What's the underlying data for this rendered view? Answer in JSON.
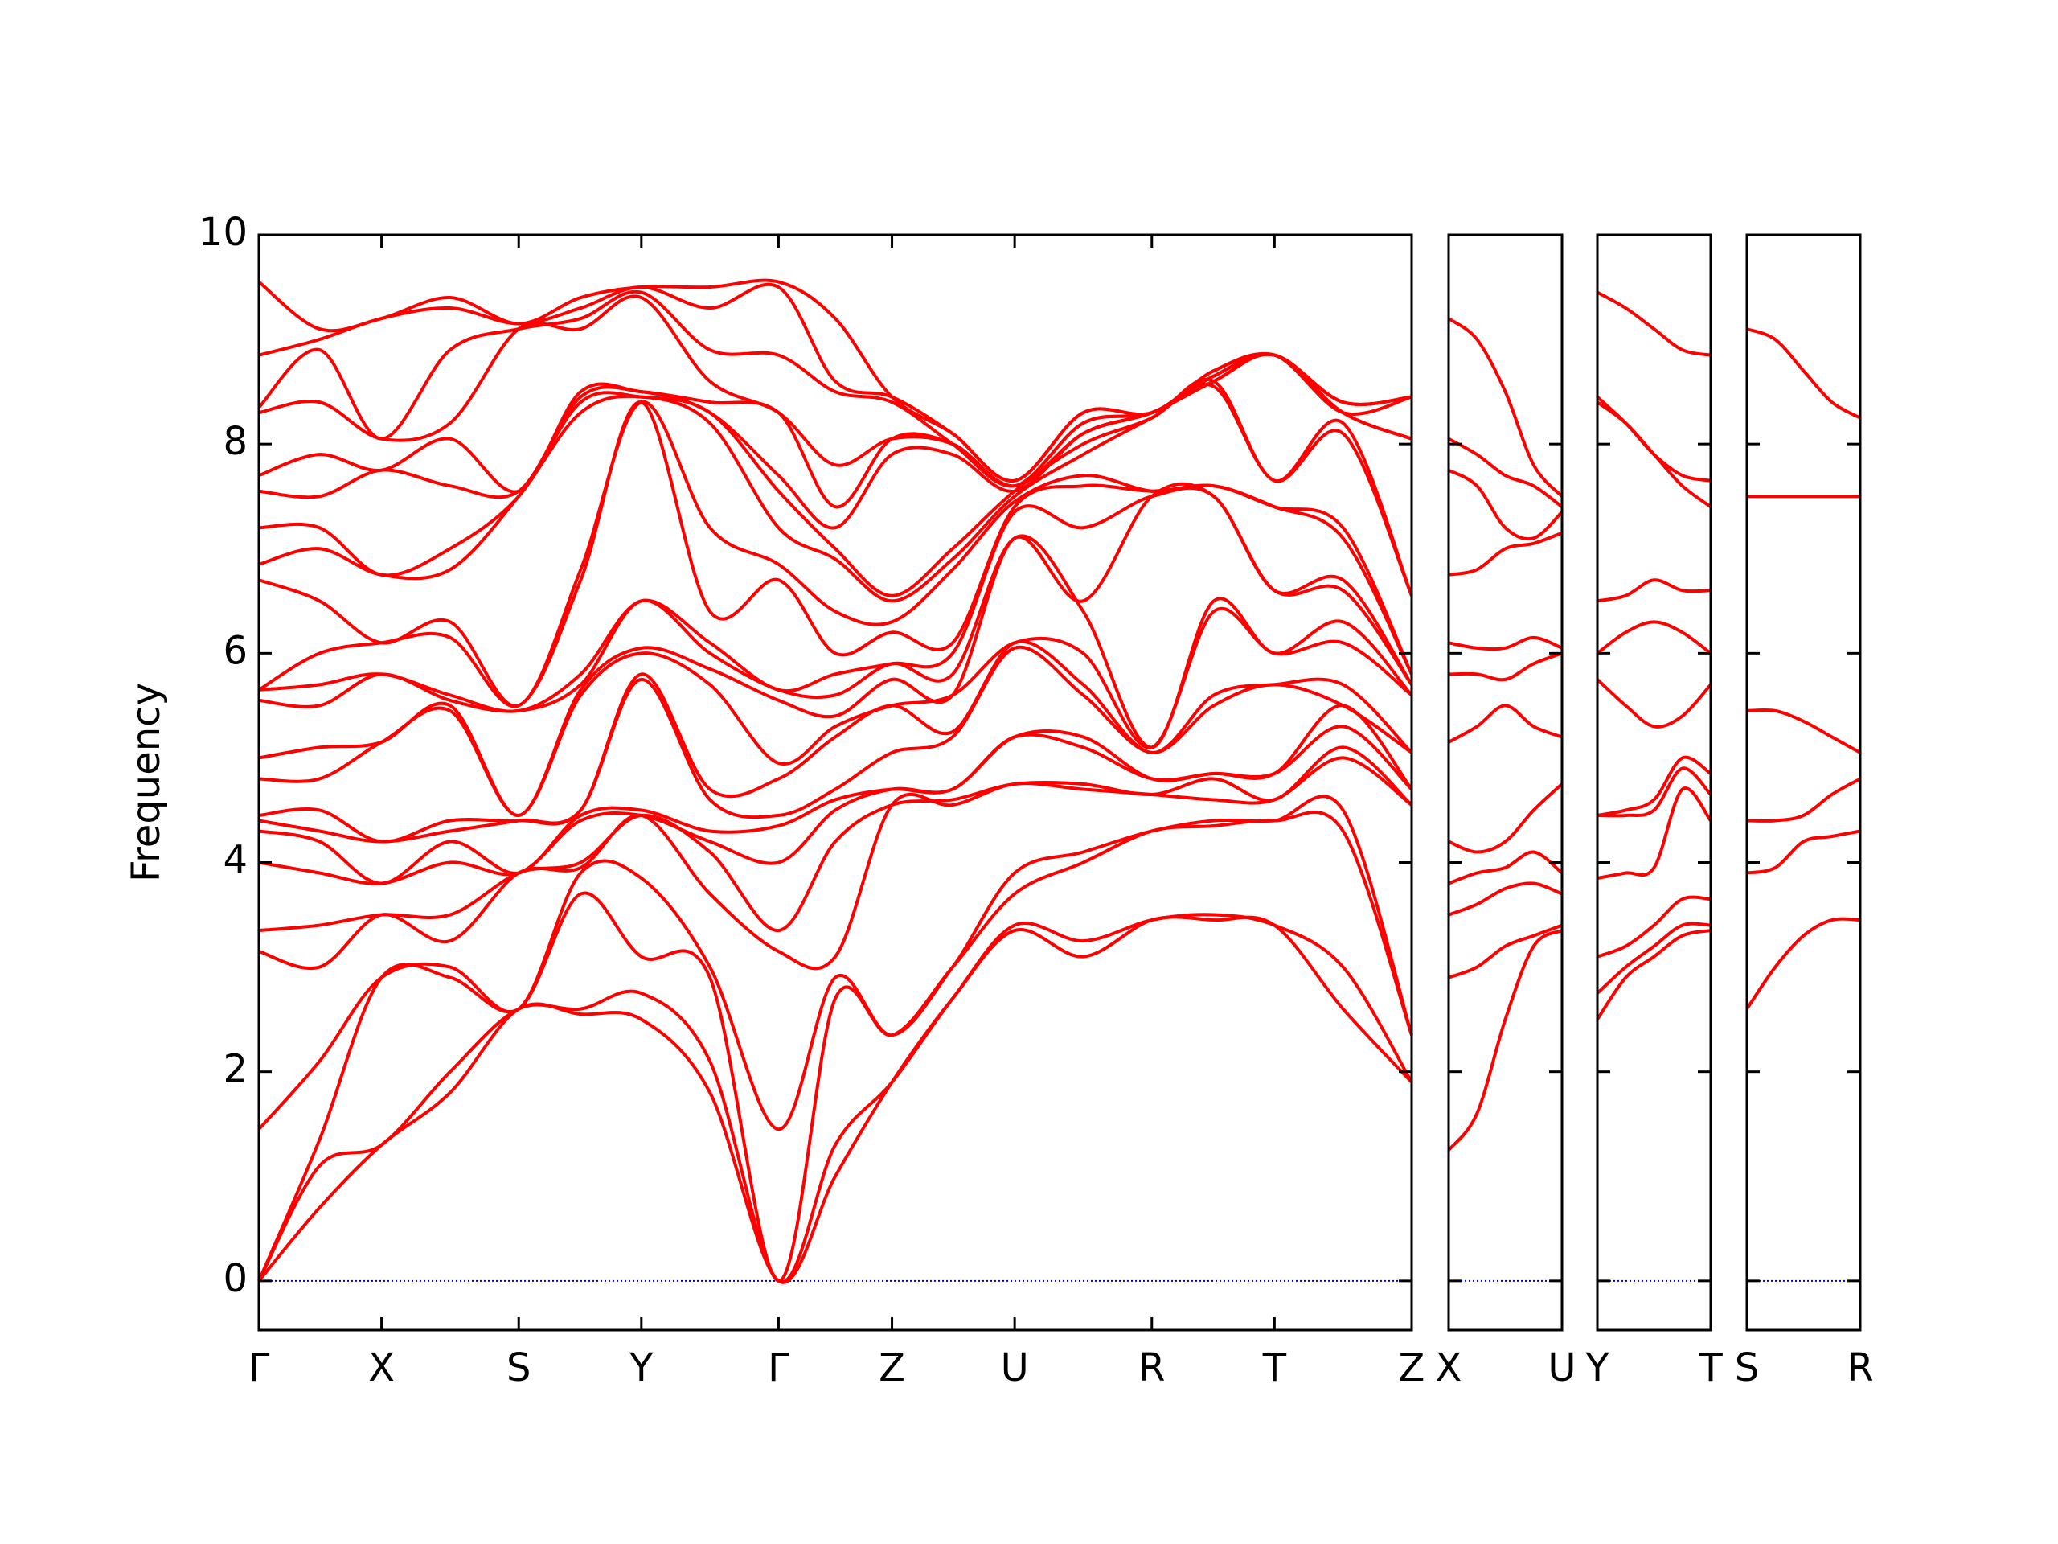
{
  "chart_data": {
    "type": "band-structure",
    "ylabel": "Frequency",
    "ylim": [
      -0.47,
      10
    ],
    "yticks": [
      0,
      2,
      4,
      6,
      8,
      10
    ],
    "color": "#ff0000",
    "zero_line": {
      "value": 0,
      "color": "#0000cc"
    },
    "panels": [
      {
        "xlim": [
          0,
          8.74
        ],
        "xticks": [
          {
            "value": 0,
            "label": "Γ"
          },
          {
            "value": 0.93,
            "label": "X"
          },
          {
            "value": 1.97,
            "label": "S"
          },
          {
            "value": 2.9,
            "label": "Y"
          },
          {
            "value": 3.94,
            "label": "Γ"
          },
          {
            "value": 4.8,
            "label": "Z"
          },
          {
            "value": 5.73,
            "label": "U"
          },
          {
            "value": 6.77,
            "label": "R"
          },
          {
            "value": 7.7,
            "label": "T"
          },
          {
            "value": 8.74,
            "label": "Z"
          }
        ],
        "x": [
          0,
          0.46,
          0.93,
          1.45,
          1.97,
          2.44,
          2.9,
          3.42,
          3.94,
          4.37,
          4.8,
          5.26,
          5.73,
          6.25,
          6.77,
          7.24,
          7.7,
          8.22,
          8.74
        ],
        "frequencies": [
          [
            0,
            0,
            0,
            1.45,
            3.15,
            3.35,
            4.0,
            4.3,
            4.4,
            4.45,
            4.8,
            5.0,
            5.55,
            5.65,
            5.65,
            6.7,
            6.85,
            7.2,
            7.55,
            7.7,
            8.3,
            8.35,
            8.85,
            9.55
          ],
          [
            0.7,
            1.1,
            1.35,
            2.1,
            3.0,
            3.4,
            3.9,
            4.2,
            4.3,
            4.5,
            4.8,
            5.1,
            5.5,
            5.7,
            6.0,
            6.5,
            7.0,
            7.2,
            7.5,
            7.9,
            8.4,
            8.9,
            9.0,
            9.1
          ],
          [
            1.3,
            1.3,
            2.9,
            2.9,
            3.5,
            3.5,
            3.8,
            3.8,
            4.2,
            4.2,
            5.15,
            5.15,
            5.8,
            5.8,
            6.1,
            6.1,
            6.75,
            6.75,
            7.75,
            7.75,
            8.05,
            8.05,
            9.2,
            9.2
          ],
          [
            1.8,
            2.0,
            2.9,
            3.0,
            3.25,
            3.5,
            4.0,
            4.2,
            4.3,
            4.4,
            5.45,
            5.5,
            5.55,
            5.6,
            6.15,
            6.3,
            6.8,
            7.0,
            7.6,
            8.05,
            8.2,
            8.9,
            9.3,
            9.4
          ],
          [
            2.6,
            2.6,
            2.6,
            2.6,
            3.9,
            3.9,
            3.9,
            3.9,
            4.4,
            4.4,
            4.45,
            4.45,
            5.45,
            5.45,
            5.5,
            5.5,
            7.5,
            7.5,
            7.55,
            7.55,
            9.1,
            9.1,
            9.15,
            9.15
          ],
          [
            2.55,
            2.6,
            3.7,
            3.9,
            3.95,
            4.0,
            4.4,
            4.45,
            4.5,
            4.5,
            5.6,
            5.65,
            5.7,
            5.8,
            6.7,
            6.8,
            8.3,
            8.4,
            8.45,
            8.5,
            9.1,
            9.2,
            9.3,
            9.4
          ],
          [
            2.5,
            2.75,
            3.1,
            3.85,
            4.45,
            4.45,
            4.45,
            4.5,
            5.75,
            5.8,
            6.0,
            6.05,
            6.5,
            6.5,
            8.4,
            8.4,
            8.45,
            8.45,
            8.5,
            8.5,
            9.4,
            9.45,
            9.5,
            9.5
          ],
          [
            1.8,
            2.1,
            2.9,
            3.0,
            3.7,
            4.1,
            4.2,
            4.3,
            4.6,
            4.7,
            5.7,
            5.85,
            6.0,
            6.1,
            6.4,
            7.2,
            8.2,
            8.3,
            8.3,
            8.4,
            8.6,
            8.9,
            9.3,
            9.5
          ],
          [
            0,
            0,
            0,
            1.45,
            3.15,
            3.35,
            4.0,
            4.35,
            4.45,
            4.8,
            4.95,
            5.55,
            5.65,
            5.65,
            6.7,
            6.85,
            7.2,
            7.55,
            7.7,
            8.3,
            8.3,
            8.85,
            9.5,
            9.55
          ],
          [
            1.0,
            1.3,
            2.7,
            2.9,
            3.1,
            4.2,
            4.5,
            4.6,
            4.7,
            5.2,
            5.3,
            5.4,
            5.6,
            5.8,
            6.0,
            6.4,
            6.9,
            7.0,
            7.2,
            7.4,
            7.8,
            8.5,
            8.6,
            9.2
          ],
          [
            1.9,
            1.9,
            2.35,
            2.35,
            4.55,
            4.55,
            4.7,
            4.7,
            5.05,
            5.5,
            5.5,
            5.75,
            5.9,
            5.9,
            6.2,
            6.3,
            6.5,
            6.55,
            7.9,
            8.05,
            8.05,
            8.4,
            8.45,
            8.45
          ],
          [
            2.7,
            2.7,
            3.0,
            3.0,
            4.55,
            4.6,
            4.7,
            4.7,
            5.2,
            5.25,
            5.6,
            5.6,
            5.8,
            6.0,
            6.1,
            6.8,
            6.9,
            7.0,
            7.9,
            8.0,
            8.0,
            8.0,
            8.1,
            8.1
          ],
          [
            3.35,
            3.4,
            3.7,
            3.9,
            4.75,
            4.75,
            5.2,
            5.2,
            6.05,
            6.1,
            6.1,
            7.1,
            7.1,
            7.35,
            7.4,
            7.45,
            7.5,
            7.55,
            7.55,
            7.6,
            7.6,
            7.6,
            7.65,
            7.65
          ],
          [
            3.1,
            3.25,
            4.0,
            4.1,
            4.7,
            4.75,
            5.1,
            5.2,
            5.6,
            5.7,
            6.0,
            6.4,
            6.5,
            7.2,
            7.6,
            7.7,
            7.9,
            8.0,
            8.1,
            8.1,
            8.2,
            8.2,
            8.3,
            8.3
          ],
          [
            3.45,
            3.45,
            4.3,
            4.3,
            4.65,
            4.65,
            4.8,
            4.8,
            5.05,
            5.05,
            5.1,
            5.1,
            7.5,
            7.5,
            7.55,
            7.55,
            8.25,
            8.25,
            8.3,
            8.3,
            8.3,
            8.3,
            8.3,
            8.3
          ],
          [
            3.45,
            3.5,
            4.35,
            4.4,
            4.6,
            4.8,
            4.85,
            4.85,
            5.5,
            5.6,
            6.4,
            6.5,
            7.5,
            7.5,
            7.6,
            7.6,
            8.55,
            8.6,
            8.6,
            8.6,
            8.65,
            8.65,
            8.7,
            8.7
          ],
          [
            3.4,
            3.4,
            4.4,
            4.4,
            4.6,
            4.6,
            4.85,
            4.85,
            5.7,
            5.7,
            6.0,
            6.0,
            6.6,
            6.6,
            7.4,
            7.4,
            7.65,
            7.65,
            8.85,
            8.85,
            8.85,
            8.85,
            8.85,
            8.85
          ],
          [
            2.6,
            3.0,
            4.3,
            4.5,
            5.0,
            5.1,
            5.3,
            5.5,
            5.5,
            5.7,
            6.1,
            6.3,
            6.6,
            6.7,
            7.1,
            7.2,
            8.1,
            8.2,
            8.3,
            8.3,
            8.3,
            8.4,
            8.4,
            8.4
          ],
          [
            1.9,
            1.9,
            2.35,
            2.35,
            4.55,
            4.55,
            4.7,
            4.7,
            5.05,
            5.05,
            5.6,
            5.6,
            5.7,
            5.7,
            5.8,
            5.8,
            6.55,
            6.55,
            8.05,
            8.05,
            8.45,
            8.45,
            8.45,
            8.45
          ]
        ]
      },
      {
        "xlim": [
          0,
          0.86
        ],
        "xticks": [
          {
            "value": 0,
            "label": "X"
          },
          {
            "value": 0.86,
            "label": "U"
          }
        ],
        "x": [
          0,
          0.215,
          0.43,
          0.645,
          0.86
        ],
        "frequencies": [
          [
            1.25,
            2.9,
            3.5,
            3.8,
            4.2,
            5.15,
            5.8,
            6.1,
            6.75,
            7.75,
            8.05,
            9.2
          ],
          [
            1.6,
            3.0,
            3.6,
            3.9,
            4.1,
            5.3,
            5.8,
            6.05,
            6.8,
            7.6,
            7.9,
            9.0
          ],
          [
            2.5,
            3.2,
            3.75,
            3.95,
            4.2,
            5.5,
            5.75,
            6.05,
            7.0,
            7.2,
            7.7,
            8.5
          ],
          [
            3.2,
            3.3,
            3.8,
            4.1,
            4.5,
            5.3,
            5.9,
            6.15,
            7.05,
            7.1,
            7.6,
            7.8
          ],
          [
            3.35,
            3.4,
            3.7,
            3.9,
            4.75,
            5.2,
            6.0,
            6.05,
            7.15,
            7.35,
            7.4,
            7.5
          ]
        ]
      },
      {
        "xlim": [
          0,
          0.86
        ],
        "xticks": [
          {
            "value": 0,
            "label": "Y"
          },
          {
            "value": 0.86,
            "label": "T"
          }
        ],
        "x": [
          0,
          0.215,
          0.43,
          0.645,
          0.86
        ],
        "frequencies": [
          [
            2.5,
            2.75,
            3.1,
            3.85,
            4.45,
            4.45,
            5.75,
            6.0,
            6.5,
            8.4,
            8.45,
            9.45
          ],
          [
            2.9,
            3.0,
            3.2,
            3.9,
            4.45,
            4.5,
            5.5,
            6.2,
            6.55,
            8.2,
            8.2,
            9.3
          ],
          [
            3.1,
            3.2,
            3.4,
            3.95,
            4.5,
            4.6,
            5.3,
            6.3,
            6.7,
            7.9,
            7.9,
            9.1
          ],
          [
            3.3,
            3.4,
            3.65,
            4.7,
            4.9,
            5.0,
            5.4,
            6.2,
            6.6,
            7.6,
            7.7,
            8.9
          ],
          [
            3.35,
            3.4,
            3.65,
            4.4,
            4.65,
            4.85,
            5.7,
            6.0,
            6.6,
            7.4,
            7.65,
            8.85
          ]
        ]
      },
      {
        "xlim": [
          0,
          0.86
        ],
        "xticks": [
          {
            "value": 0,
            "label": "S"
          },
          {
            "value": 0.86,
            "label": "R"
          }
        ],
        "x": [
          0,
          0.215,
          0.43,
          0.645,
          0.86
        ],
        "frequencies": [
          [
            2.6,
            3.9,
            4.4,
            5.45,
            7.5,
            9.1
          ],
          [
            3.0,
            3.95,
            4.4,
            5.45,
            7.5,
            9.0
          ],
          [
            3.3,
            4.2,
            4.45,
            5.35,
            7.5,
            8.7
          ],
          [
            3.45,
            4.25,
            4.65,
            5.2,
            7.5,
            8.4
          ],
          [
            3.45,
            4.3,
            4.8,
            5.05,
            7.5,
            8.25
          ]
        ]
      }
    ]
  }
}
